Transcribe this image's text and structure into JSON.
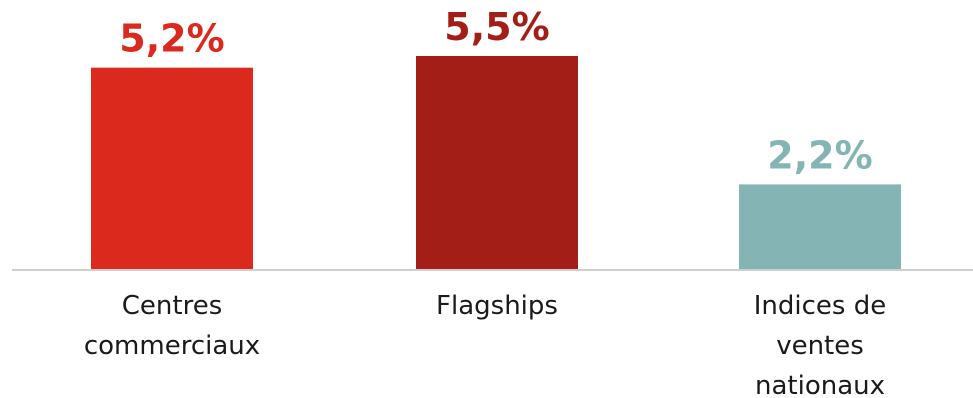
{
  "chart_data": {
    "type": "bar",
    "categories": [
      [
        "Centres",
        "commerciaux"
      ],
      [
        "Flagships"
      ],
      [
        "Indices de",
        "ventes",
        "nationaux"
      ]
    ],
    "values": [
      5.2,
      5.5,
      2.2
    ],
    "value_labels": [
      "5,2%",
      "5,5%",
      "2,2%"
    ],
    "colors": [
      "#dc291e",
      "#a21e16",
      "#85b4b4"
    ],
    "title": "",
    "xlabel": "",
    "ylabel": "",
    "ylim": [
      0,
      5.5
    ],
    "grid": false,
    "legend": "none"
  }
}
